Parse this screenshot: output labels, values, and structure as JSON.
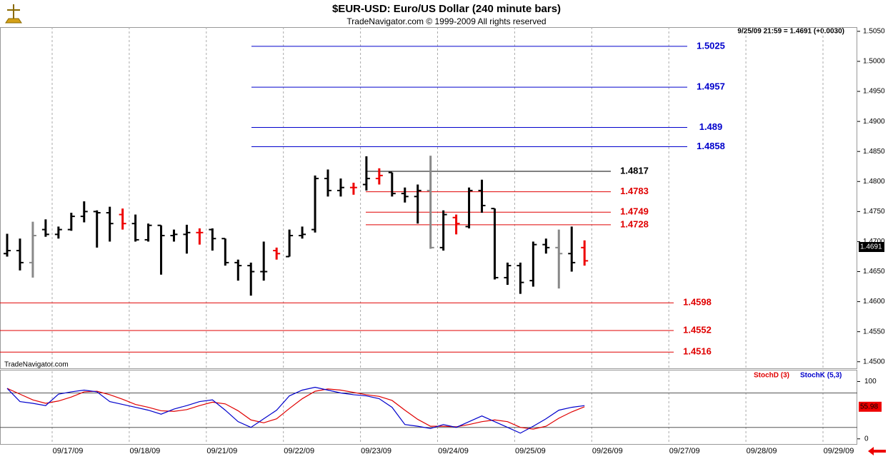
{
  "chart_data": {
    "type": "ohlc",
    "title": "$EUR-USD:  Euro/US Dollar  (240 minute bars)",
    "subtitle": "TradeNavigator.com © 1999-2009 All rights reserved",
    "info": "9/25/09 21:59 = 1.4691 (+0.0030)",
    "watermark": "TradeNavigator.com",
    "last_price": 1.4691,
    "categories": [
      "09/17/09",
      "09/18/09",
      "09/21/09",
      "09/22/09",
      "09/23/09",
      "09/24/09",
      "09/25/09",
      "09/26/09",
      "09/27/09",
      "09/28/09",
      "09/29/09"
    ],
    "open": [
      1.468,
      1.4685,
      1.4665,
      1.472,
      1.4712,
      1.472,
      1.4742,
      1.475,
      1.4748,
      1.4745,
      1.473,
      1.4703,
      1.4727,
      1.471,
      1.4712,
      1.4715,
      1.472,
      1.4705,
      1.4665,
      1.466,
      1.465,
      1.4685,
      1.4675,
      1.471,
      1.472,
      1.4805,
      1.4785,
      1.479,
      1.4795,
      1.4805,
      1.4815,
      1.478,
      1.4775,
      1.4785,
      1.469,
      1.474,
      1.4725,
      1.4785,
      1.4755,
      1.464,
      1.466,
      1.4635,
      1.4695,
      1.469,
      1.468,
      1.469
    ],
    "high": [
      1.4713,
      1.4705,
      1.4733,
      1.4737,
      1.4725,
      1.4748,
      1.4767,
      1.4752,
      1.4758,
      1.4755,
      1.4745,
      1.473,
      1.4727,
      1.472,
      1.4728,
      1.4722,
      1.4722,
      1.4705,
      1.467,
      1.4665,
      1.47,
      1.469,
      1.472,
      1.4725,
      1.481,
      1.482,
      1.4805,
      1.4798,
      1.4842,
      1.4822,
      1.4815,
      1.479,
      1.4795,
      1.4843,
      1.4752,
      1.4745,
      1.479,
      1.4803,
      1.4755,
      1.4665,
      1.4665,
      1.47,
      1.4705,
      1.472,
      1.4725,
      1.4702
    ],
    "low": [
      1.4675,
      1.4652,
      1.464,
      1.4708,
      1.4705,
      1.4718,
      1.4732,
      1.469,
      1.47,
      1.472,
      1.47,
      1.47,
      1.4645,
      1.47,
      1.468,
      1.4695,
      1.4685,
      1.466,
      1.4635,
      1.461,
      1.4635,
      1.467,
      1.4675,
      1.4705,
      1.4715,
      1.4775,
      1.4775,
      1.4778,
      1.4785,
      1.4795,
      1.4775,
      1.4765,
      1.473,
      1.4688,
      1.4685,
      1.4712,
      1.4722,
      1.4748,
      1.4637,
      1.4628,
      1.4613,
      1.4625,
      1.468,
      1.4622,
      1.465,
      1.466
    ],
    "close": [
      1.4685,
      1.4665,
      1.471,
      1.4712,
      1.472,
      1.4742,
      1.475,
      1.4748,
      1.473,
      1.473,
      1.4703,
      1.4727,
      1.471,
      1.4712,
      1.4715,
      1.4715,
      1.4705,
      1.4665,
      1.466,
      1.465,
      1.465,
      1.468,
      1.471,
      1.4712,
      1.4805,
      1.4785,
      1.479,
      1.479,
      1.4805,
      1.481,
      1.478,
      1.4775,
      1.4785,
      1.469,
      1.4745,
      1.473,
      1.4785,
      1.476,
      1.464,
      1.466,
      1.4632,
      1.4695,
      1.469,
      1.468,
      1.4665,
      1.4668
    ],
    "colors": [
      "#000",
      "#000",
      "#888",
      "#000",
      "#000",
      "#000",
      "#000",
      "#000",
      "#000",
      "#e00",
      "#000",
      "#000",
      "#000",
      "#000",
      "#000",
      "#e00",
      "#000",
      "#000",
      "#000",
      "#000",
      "#000",
      "#e00",
      "#000",
      "#000",
      "#000",
      "#000",
      "#000",
      "#e00",
      "#000",
      "#e00",
      "#000",
      "#000",
      "#000",
      "#888",
      "#000",
      "#e00",
      "#000",
      "#000",
      "#000",
      "#000",
      "#000",
      "#000",
      "#000",
      "#888",
      "#000",
      "#e00"
    ],
    "levels": [
      {
        "value": 1.5025,
        "color": "#0000cc"
      },
      {
        "value": 1.4957,
        "color": "#0000cc"
      },
      {
        "value": 1.489,
        "color": "#0000cc"
      },
      {
        "value": 1.4858,
        "color": "#0000cc"
      },
      {
        "value": 1.4817,
        "color": "#000000"
      },
      {
        "value": 1.4783,
        "color": "#e00000"
      },
      {
        "value": 1.4749,
        "color": "#e00000"
      },
      {
        "value": 1.4728,
        "color": "#e00000"
      },
      {
        "value": 1.4598,
        "color": "#e00000"
      },
      {
        "value": 1.4552,
        "color": "#e00000"
      },
      {
        "value": 1.4516,
        "color": "#e00000"
      }
    ],
    "ylim": [
      1.4489,
      1.5057
    ],
    "yticks": [
      {
        "value": 1.45,
        "label": "1.4500"
      },
      {
        "value": 1.455,
        "label": "1.4550"
      },
      {
        "value": 1.46,
        "label": "1.4600"
      },
      {
        "value": 1.465,
        "label": "1.4650"
      },
      {
        "value": 1.47,
        "label": "1.4700"
      },
      {
        "value": 1.475,
        "label": "1.4750"
      },
      {
        "value": 1.48,
        "label": "1.4800"
      },
      {
        "value": 1.485,
        "label": "1.4850"
      },
      {
        "value": 1.49,
        "label": "1.4900"
      },
      {
        "value": 1.495,
        "label": "1.4950"
      },
      {
        "value": 1.5,
        "label": "1.5000"
      },
      {
        "value": 1.505,
        "label": "1.5050"
      }
    ],
    "stoch": {
      "ylim": [
        -9,
        118
      ],
      "yticks": [
        0,
        100
      ],
      "bands": [
        20,
        80
      ],
      "last": 55.98,
      "series": [
        {
          "name": "StochD (3)",
          "color": "#e00000",
          "values": [
            88,
            78,
            68,
            62,
            66,
            73,
            82,
            83,
            77,
            69,
            60,
            55,
            49,
            48,
            51,
            58,
            64,
            61,
            49,
            33,
            28,
            35,
            53,
            70,
            83,
            87,
            85,
            81,
            77,
            74,
            67,
            50,
            34,
            22,
            22,
            21,
            25,
            30,
            33,
            30,
            20,
            17,
            22,
            36,
            47,
            55.98
          ]
        },
        {
          "name": "StochK (5,3)",
          "color": "#0000cc",
          "values": [
            88,
            65,
            62,
            58,
            78,
            82,
            85,
            82,
            65,
            60,
            55,
            50,
            43,
            52,
            58,
            65,
            68,
            50,
            30,
            20,
            35,
            50,
            75,
            85,
            90,
            85,
            80,
            77,
            75,
            70,
            55,
            25,
            22,
            18,
            25,
            20,
            30,
            40,
            30,
            20,
            10,
            22,
            35,
            50,
            55,
            58
          ]
        }
      ]
    }
  }
}
